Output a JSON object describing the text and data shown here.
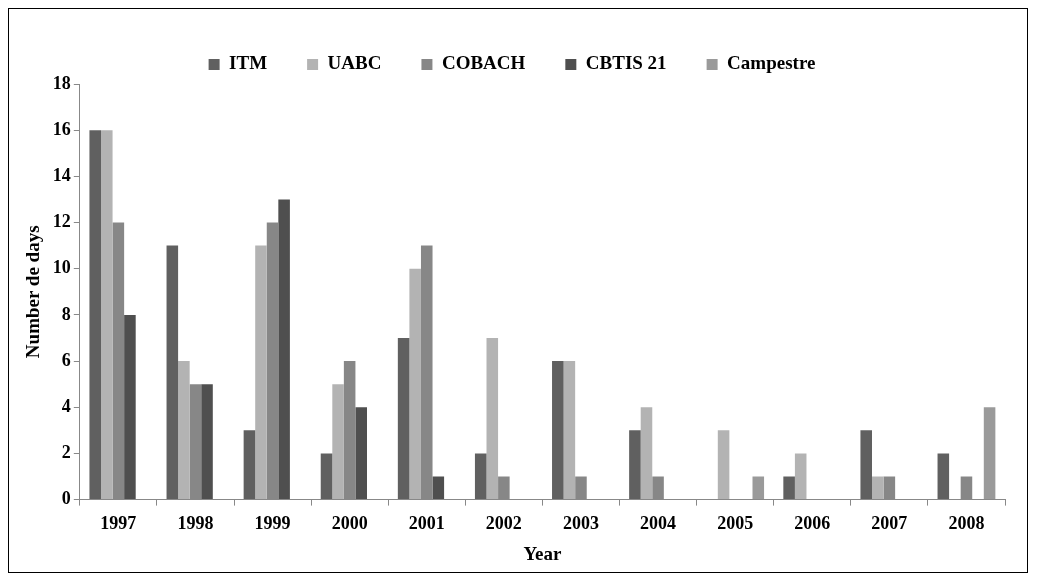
{
  "chart_data": {
    "type": "bar",
    "xlabel": "Year",
    "ylabel": "Number de days",
    "categories": [
      "1997",
      "1998",
      "1999",
      "2000",
      "2001",
      "2002",
      "2003",
      "2004",
      "2005",
      "2006",
      "2007",
      "2008"
    ],
    "series": [
      {
        "name": "ITM",
        "color": "#606060",
        "values": [
          16,
          11,
          3,
          2,
          7,
          2,
          6,
          3,
          0,
          1,
          3,
          2
        ]
      },
      {
        "name": "UABC",
        "color": "#b3b3b3",
        "values": [
          16,
          6,
          11,
          5,
          10,
          7,
          6,
          4,
          3,
          2,
          1,
          0
        ]
      },
      {
        "name": "COBACH",
        "color": "#878787",
        "values": [
          12,
          5,
          12,
          6,
          11,
          1,
          1,
          1,
          0,
          0,
          1,
          1
        ]
      },
      {
        "name": "CBTIS 21",
        "color": "#4f4f4f",
        "values": [
          8,
          5,
          13,
          4,
          1,
          0,
          0,
          0,
          0,
          0,
          0,
          0
        ]
      },
      {
        "name": "Campestre",
        "color": "#9a9a9a",
        "values": [
          0,
          0,
          0,
          0,
          0,
          0,
          0,
          0,
          1,
          0,
          0,
          4
        ]
      }
    ],
    "ylim": [
      0,
      18
    ],
    "yticks": [
      0,
      2,
      4,
      6,
      8,
      10,
      12,
      14,
      16,
      18
    ],
    "grid": false,
    "legend": "top"
  }
}
